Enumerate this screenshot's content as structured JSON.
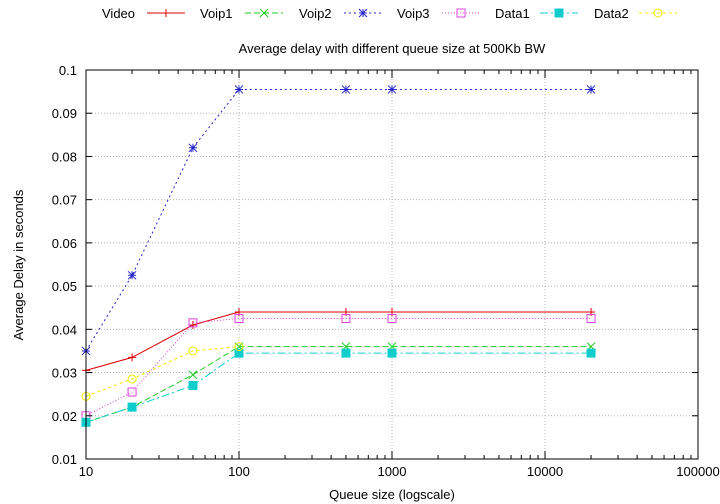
{
  "chart_data": {
    "type": "line",
    "title": "Average delay with different queue size at 500Kb BW",
    "xlabel": "Queue size (logscale)",
    "ylabel": "Average Delay in seconds",
    "xscale": "log",
    "xlim": [
      10,
      100000
    ],
    "ylim": [
      0.01,
      0.1
    ],
    "x_ticks": [
      10,
      100,
      1000,
      10000,
      100000
    ],
    "x_tick_labels": [
      "10",
      "100",
      "1000",
      "10000",
      "100000"
    ],
    "y_ticks": [
      0.01,
      0.02,
      0.03,
      0.04,
      0.05,
      0.06,
      0.07,
      0.08,
      0.09,
      0.1
    ],
    "y_tick_labels": [
      "0.01",
      "0.02",
      "0.03",
      "0.04",
      "0.05",
      "0.06",
      "0.07",
      "0.08",
      "0.09",
      "0.1"
    ],
    "grid": true,
    "legend_position": "top",
    "x": [
      10,
      20,
      50,
      100,
      500,
      1000,
      20000
    ],
    "series": [
      {
        "name": "Video",
        "color": "#dd0000",
        "marker": "plus",
        "dash": "",
        "values": [
          0.0305,
          0.0335,
          0.041,
          0.044,
          0.044,
          0.044,
          0.044
        ]
      },
      {
        "name": "Voip1",
        "color": "#22cc22",
        "marker": "cross",
        "dash": "6,3",
        "values": [
          0.0185,
          0.022,
          0.0295,
          0.036,
          0.036,
          0.036,
          0.036
        ]
      },
      {
        "name": "Voip2",
        "color": "#2222cc",
        "marker": "star",
        "dash": "2,3",
        "values": [
          0.035,
          0.0525,
          0.082,
          0.0955,
          0.0955,
          0.0955,
          0.0955
        ]
      },
      {
        "name": "Voip3",
        "color": "#dd44dd",
        "marker": "square",
        "dash": "1,2",
        "values": [
          0.02,
          0.0255,
          0.0415,
          0.0425,
          0.0425,
          0.0425,
          0.0425
        ]
      },
      {
        "name": "Data1",
        "color": "#11cccc",
        "marker": "filled-square",
        "dash": "8,3,2,3",
        "values": [
          0.0185,
          0.022,
          0.027,
          0.0345,
          0.0345,
          0.0345,
          0.0345
        ]
      },
      {
        "name": "Data2",
        "color": "#eeee00",
        "marker": "circle",
        "dash": "3,3",
        "values": [
          0.0245,
          0.0285,
          0.035,
          0.036,
          null,
          null,
          null
        ]
      }
    ]
  }
}
